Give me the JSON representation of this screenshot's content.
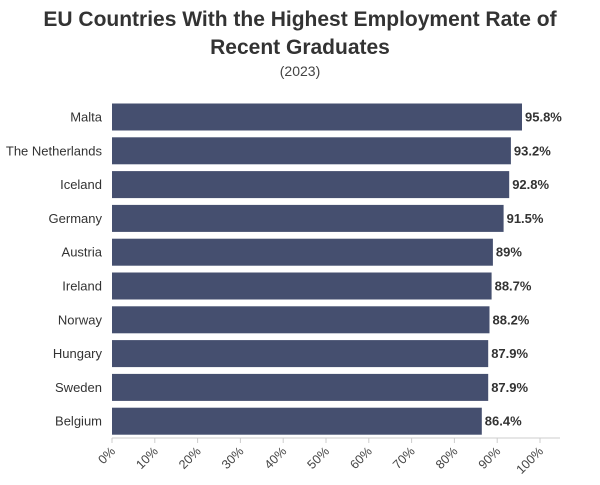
{
  "chart_data": {
    "type": "bar",
    "orientation": "horizontal",
    "title": "EU Countries With the Highest Employment Rate of Recent Graduates",
    "subtitle": "(2023)",
    "xlabel": "",
    "ylabel": "",
    "xlim": [
      0,
      100
    ],
    "x_ticks": [
      "0%",
      "10%",
      "20%",
      "30%",
      "40%",
      "50%",
      "60%",
      "70%",
      "80%",
      "90%",
      "100%"
    ],
    "categories": [
      "Malta",
      "The Netherlands",
      "Iceland",
      "Germany",
      "Austria",
      "Ireland",
      "Norway",
      "Hungary",
      "Sweden",
      "Belgium"
    ],
    "values": [
      95.8,
      93.2,
      92.8,
      91.5,
      89,
      88.7,
      88.2,
      87.9,
      87.9,
      86.4
    ],
    "value_labels": [
      "95.8%",
      "93.2%",
      "92.8%",
      "91.5%",
      "89%",
      "88.7%",
      "88.2%",
      "87.9%",
      "87.9%",
      "86.4%"
    ],
    "bar_color": "#454f6f",
    "grid": false,
    "legend": "none"
  }
}
